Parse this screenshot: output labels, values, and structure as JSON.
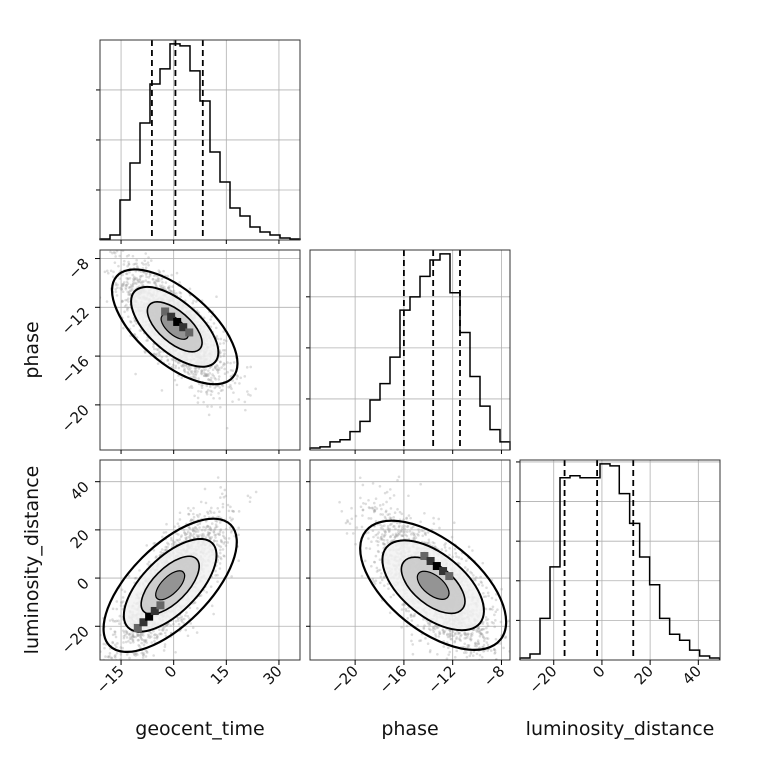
{
  "chart_data": {
    "type": "corner",
    "parameters": [
      "geocent_time",
      "phase",
      "luminosity_distance"
    ],
    "axis_labels": {
      "x": [
        "geocent_time",
        "phase",
        "luminosity_distance"
      ],
      "y": [
        "phase",
        "luminosity_distance"
      ]
    },
    "ranges": {
      "geocent_time": [
        -21,
        36
      ],
      "phase": [
        -23.7,
        -7.3
      ],
      "luminosity_distance": [
        -34,
        49
      ]
    },
    "ticks": {
      "geocent_time": [
        -15,
        0,
        15,
        30
      ],
      "phase": [
        -20,
        -16,
        -12,
        -8
      ],
      "luminosity_distance": [
        -20,
        0,
        20,
        40
      ]
    },
    "quantiles": {
      "geocent_time": [
        -6.2,
        0.5,
        8.3
      ],
      "phase": [
        -16.0,
        -13.6,
        -11.4
      ],
      "luminosity_distance": [
        -15.5,
        -2.0,
        13.0
      ]
    },
    "histograms": {
      "geocent_time": {
        "edges": [
          -21,
          -18.15,
          -15.3,
          -12.45,
          -9.6,
          -6.75,
          -3.9,
          -1.05,
          1.8,
          4.65,
          7.5,
          10.35,
          13.2,
          16.05,
          18.9,
          21.75,
          24.6,
          27.45,
          30.3,
          33.15,
          36
        ],
        "counts": [
          1,
          5,
          40,
          77,
          117,
          156,
          171,
          196,
          194,
          169,
          139,
          88,
          58,
          32,
          24,
          13,
          8,
          5,
          2,
          1
        ]
      },
      "phase": {
        "edges": [
          -23.7,
          -22.88,
          -22.06,
          -21.24,
          -20.42,
          -19.6,
          -18.78,
          -17.96,
          -17.14,
          -16.32,
          -15.5,
          -14.68,
          -13.86,
          -13.04,
          -12.22,
          -11.4,
          -10.58,
          -9.76,
          -8.94,
          -8.12,
          -7.3
        ],
        "counts": [
          2,
          3,
          8,
          10,
          18,
          28,
          49,
          65,
          91,
          137,
          150,
          170,
          186,
          192,
          154,
          115,
          72,
          43,
          20,
          8
        ]
      },
      "luminosity_distance": {
        "edges": [
          -34,
          -29.85,
          -25.7,
          -21.55,
          -17.4,
          -13.25,
          -9.1,
          -4.95,
          -0.8,
          3.35,
          7.2,
          11.5,
          15.65,
          19.8,
          23.95,
          28.1,
          32.25,
          36.4,
          40.55,
          44.7,
          48.85
        ],
        "counts": [
          1,
          3,
          21,
          47,
          92,
          93,
          92,
          92,
          99,
          98,
          84,
          69,
          52,
          38,
          21,
          13,
          10,
          5,
          2,
          1
        ]
      }
    },
    "joint": {
      "phase_vs_geocent_time": {
        "correlation": -0.75,
        "center": [
          0.3,
          -13.6
        ],
        "sigma": [
          7.2,
          2.4
        ],
        "peak": [
          1.0,
          -13.2
        ]
      },
      "luminosity_distance_vs_geocent_time": {
        "correlation": 0.78,
        "center": [
          -1.0,
          -3.0
        ],
        "sigma": [
          7.5,
          14.0
        ],
        "peak": [
          -7.0,
          -16.0
        ]
      },
      "luminosity_distance_vs_phase": {
        "correlation": -0.7,
        "center": [
          -13.6,
          -3.0
        ],
        "sigma": [
          2.4,
          14.0
        ],
        "peak": [
          -13.3,
          5.0
        ]
      }
    },
    "grid": true,
    "legend": "none",
    "colors": {
      "hist_line": "#000000",
      "quantile_line": "#000000",
      "contour": "#000000",
      "scatter": "#9e9e9e",
      "grid": "#b0b0b0"
    }
  }
}
